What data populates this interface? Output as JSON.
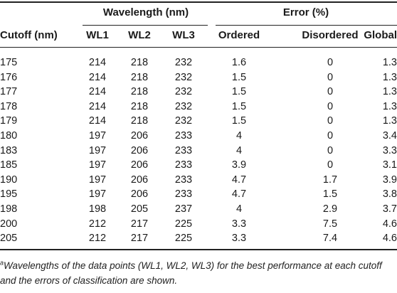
{
  "header": {
    "group_wavelength": "Wavelength (nm)",
    "group_error": "Error (%)",
    "col_cutoff": "Cutoff (nm)",
    "col_wl1": "WL1",
    "col_wl2": "WL2",
    "col_wl3": "WL3",
    "col_ordered": "Ordered",
    "col_disordered": "Disordered",
    "col_global": "Global"
  },
  "rows": [
    {
      "cutoff": "175",
      "wl1": "214",
      "wl2": "218",
      "wl3": "232",
      "ordered": "1.6",
      "disordered": "0",
      "global": "1.3"
    },
    {
      "cutoff": "176",
      "wl1": "214",
      "wl2": "218",
      "wl3": "232",
      "ordered": "1.5",
      "disordered": "0",
      "global": "1.3"
    },
    {
      "cutoff": "177",
      "wl1": "214",
      "wl2": "218",
      "wl3": "232",
      "ordered": "1.5",
      "disordered": "0",
      "global": "1.3"
    },
    {
      "cutoff": "178",
      "wl1": "214",
      "wl2": "218",
      "wl3": "232",
      "ordered": "1.5",
      "disordered": "0",
      "global": "1.3"
    },
    {
      "cutoff": "179",
      "wl1": "214",
      "wl2": "218",
      "wl3": "232",
      "ordered": "1.5",
      "disordered": "0",
      "global": "1.3"
    },
    {
      "cutoff": "180",
      "wl1": "197",
      "wl2": "206",
      "wl3": "233",
      "ordered": "4",
      "disordered": "0",
      "global": "3.4"
    },
    {
      "cutoff": "183",
      "wl1": "197",
      "wl2": "206",
      "wl3": "233",
      "ordered": "4",
      "disordered": "0",
      "global": "3.3"
    },
    {
      "cutoff": "185",
      "wl1": "197",
      "wl2": "206",
      "wl3": "233",
      "ordered": "3.9",
      "disordered": "0",
      "global": "3.1"
    },
    {
      "cutoff": "190",
      "wl1": "197",
      "wl2": "206",
      "wl3": "233",
      "ordered": "4.7",
      "disordered": "1.7",
      "global": "3.9"
    },
    {
      "cutoff": "195",
      "wl1": "197",
      "wl2": "206",
      "wl3": "233",
      "ordered": "4.7",
      "disordered": "1.5",
      "global": "3.8"
    },
    {
      "cutoff": "198",
      "wl1": "198",
      "wl2": "205",
      "wl3": "237",
      "ordered": "4",
      "disordered": "2.9",
      "global": "3.7"
    },
    {
      "cutoff": "200",
      "wl1": "212",
      "wl2": "217",
      "wl3": "225",
      "ordered": "3.3",
      "disordered": "7.5",
      "global": "4.6"
    },
    {
      "cutoff": "205",
      "wl1": "212",
      "wl2": "217",
      "wl3": "225",
      "ordered": "3.3",
      "disordered": "7.4",
      "global": "4.6"
    }
  ],
  "footnote": {
    "marker": "a",
    "text": "Wavelengths of the data points (WL1, WL2, WL3) for the best performance at each cutoff and the errors of classification are shown."
  }
}
